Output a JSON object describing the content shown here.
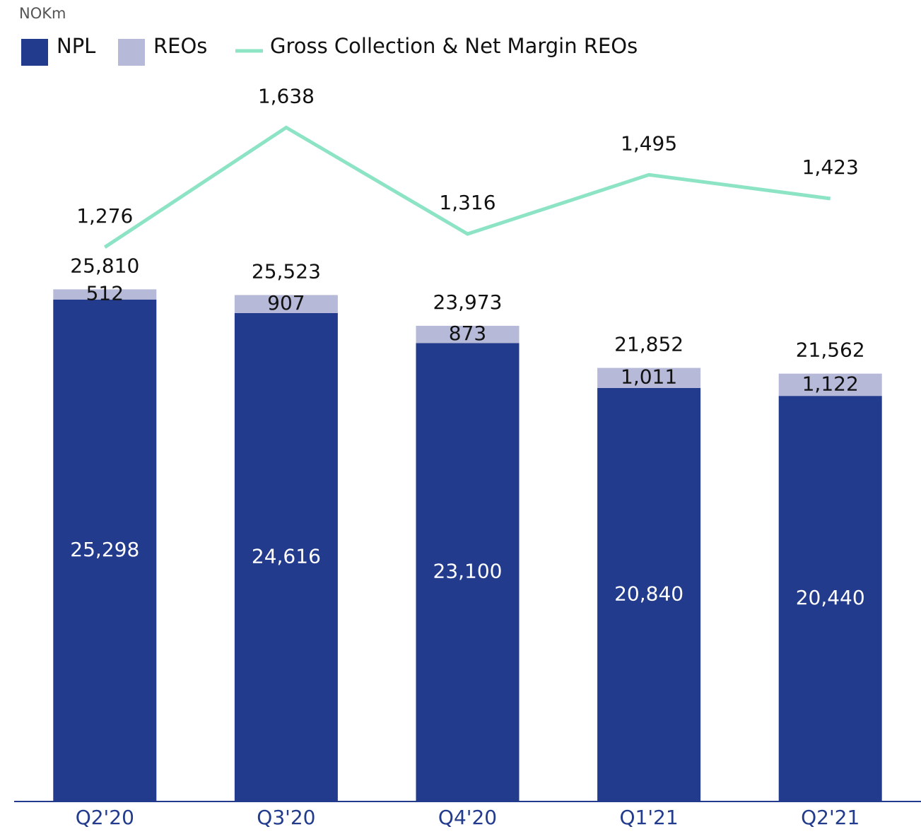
{
  "chart_data": {
    "type": "stacked_bar_line",
    "unit_label": "NOKm",
    "categories": [
      "Q2'20",
      "Q3'20",
      "Q4'20",
      "Q1'21",
      "Q2'21"
    ],
    "series": [
      {
        "name": "NPL",
        "color": "#233b8c",
        "values": [
          25298,
          24616,
          23100,
          20840,
          20440
        ],
        "value_labels": [
          "25,298",
          "24,616",
          "23,100",
          "20,840",
          "20,440"
        ]
      },
      {
        "name": "REOs",
        "color": "#b6b9d8",
        "values": [
          512,
          907,
          873,
          1011,
          1122
        ],
        "value_labels": [
          "512",
          "907",
          "873",
          "1,011",
          "1,122"
        ]
      },
      {
        "name": "Gross Collection & Net Margin REOs",
        "color": "#8de4c5",
        "axis": "y2",
        "type": "line",
        "values": [
          1276,
          1638,
          1316,
          1495,
          1423
        ],
        "value_labels": [
          "1,276",
          "1,638",
          "1,316",
          "1,495",
          "1,423"
        ]
      }
    ],
    "totals": [
      25810,
      25523,
      23973,
      21852,
      21562
    ],
    "total_labels": [
      "25,810",
      "25,523",
      "23,973",
      "21,852",
      "21,562"
    ],
    "ylim": [
      0,
      40000
    ],
    "y2lim": [
      -400,
      2000
    ]
  }
}
